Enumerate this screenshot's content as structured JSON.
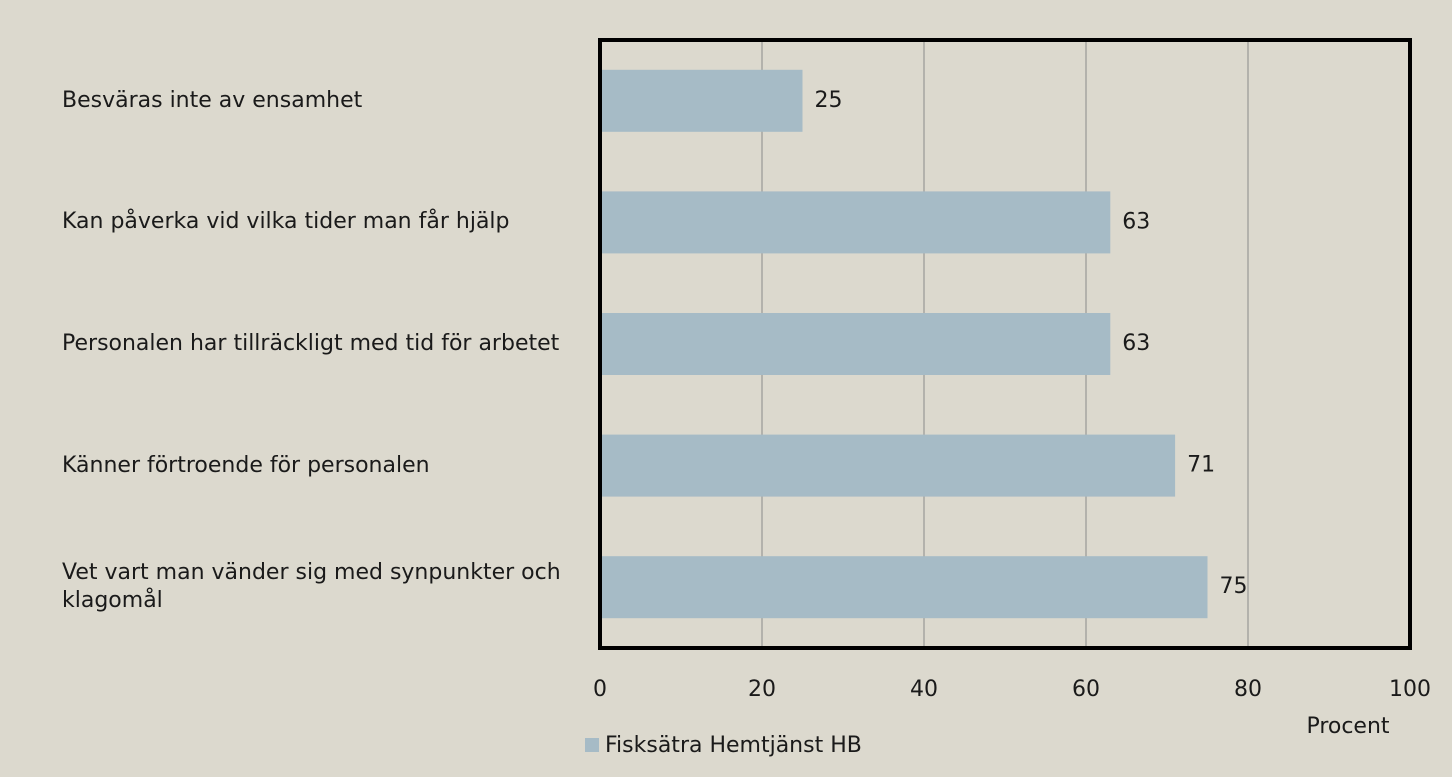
{
  "chart_data": {
    "type": "bar",
    "orientation": "horizontal",
    "categories": [
      "Besväras inte av ensamhet",
      "Kan påverka vid vilka tider man får hjälp",
      "Personalen har tillräckligt med tid för arbetet",
      "Känner förtroende för personalen",
      "Vet vart man vänder sig med synpunkter och klagomål"
    ],
    "series": [
      {
        "name": "Fisksätra Hemtjänst HB",
        "color": "#a6bbc6",
        "values": [
          25,
          63,
          63,
          71,
          75
        ]
      }
    ],
    "x_label": "Procent",
    "xlim": [
      0,
      100
    ],
    "xticks": [
      0,
      20,
      40,
      60,
      80,
      100
    ],
    "grid": true,
    "legend": "bottom"
  }
}
